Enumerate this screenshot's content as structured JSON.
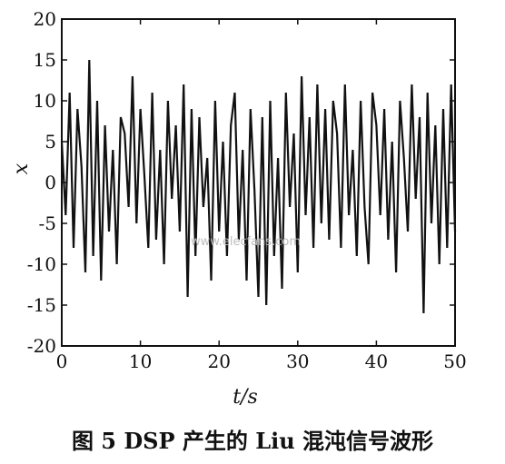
{
  "chart_data": {
    "type": "line",
    "title": "",
    "xlabel": "t/s",
    "ylabel": "x",
    "xlim": [
      0,
      50
    ],
    "ylim": [
      -20,
      20
    ],
    "xticks": [
      0,
      10,
      20,
      30,
      40,
      50
    ],
    "yticks": [
      20,
      15,
      10,
      5,
      0,
      -5,
      -10,
      -15,
      -20
    ],
    "grid": false,
    "legend": "none",
    "line_color": "#111111",
    "series": [
      {
        "x": [
          0,
          0.5,
          1,
          1.5,
          2,
          2.5,
          3,
          3.5,
          4,
          4.5,
          5,
          5.5,
          6,
          6.5,
          7,
          7.5,
          8,
          8.5,
          9,
          9.5,
          10,
          10.5,
          11,
          11.5,
          12,
          12.5,
          13,
          13.5,
          14,
          14.5,
          15,
          15.5,
          16,
          16.5,
          17,
          17.5,
          18,
          18.5,
          19,
          19.5,
          20,
          20.5,
          21,
          21.5,
          22,
          22.5,
          23,
          23.5,
          24,
          24.5,
          25,
          25.5,
          26,
          26.5,
          27,
          27.5,
          28,
          28.5,
          29,
          29.5,
          30,
          30.5,
          31,
          31.5,
          32,
          32.5,
          33,
          33.5,
          34,
          34.5,
          35,
          35.5,
          36,
          36.5,
          37,
          37.5,
          38,
          38.5,
          39,
          39.5,
          40,
          40.5,
          41,
          41.5,
          42,
          42.5,
          43,
          43.5,
          44,
          44.5,
          45,
          45.5,
          46,
          46.5,
          47,
          47.5,
          48,
          48.5,
          49,
          49.5,
          50
        ],
        "y": [
          5,
          -4,
          11,
          -8,
          9,
          2,
          -11,
          15,
          -9,
          10,
          -12,
          7,
          -6,
          4,
          -10,
          8,
          6,
          -3,
          13,
          -5,
          9,
          1,
          -8,
          11,
          -7,
          4,
          -10,
          10,
          -2,
          7,
          -6,
          12,
          -14,
          9,
          -9,
          8,
          -3,
          3,
          -12,
          10,
          -6,
          5,
          -9,
          7,
          11,
          -7,
          4,
          -12,
          9,
          -1,
          -14,
          8,
          -15,
          10,
          -9,
          3,
          -13,
          11,
          -3,
          6,
          -11,
          13,
          -4,
          8,
          -8,
          12,
          -5,
          9,
          -7,
          10,
          6,
          -8,
          12,
          -4,
          4,
          -9,
          10,
          -3,
          -10,
          11,
          7,
          -4,
          9,
          -7,
          5,
          -11,
          10,
          3,
          -6,
          12,
          -2,
          8,
          -16,
          11,
          -5,
          7,
          -10,
          9,
          -8,
          12,
          -6
        ]
      }
    ]
  },
  "watermark": "www.elecfans.com",
  "caption": "图 5   DSP 产生的 Liu 混沌信号波形"
}
